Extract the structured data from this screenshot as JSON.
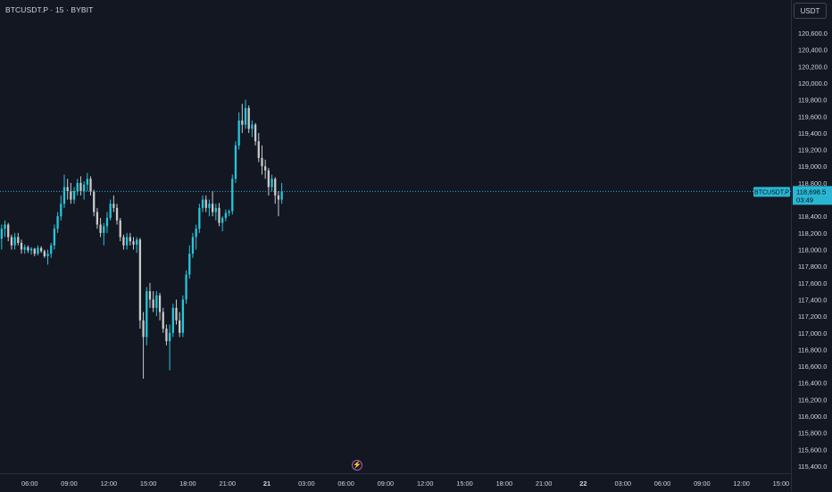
{
  "header": {
    "symbol_title": "BTCUSDT.P · 15 · BYBIT",
    "currency_button": "USDT"
  },
  "price_line": {
    "symbol_label": "BTCUSDT.P",
    "price": "118,698.5",
    "countdown": "03:49",
    "value": 118698.5
  },
  "icons": {
    "flash": "flash-icon"
  },
  "colors": {
    "background": "#131722",
    "up": "#26c6da",
    "down": "#c9c9c9",
    "price_line": "#29b6d3",
    "text": "#d1d4dc",
    "grid_border": "#2a2e39"
  },
  "chart_data": {
    "type": "candlestick",
    "symbol": "BTCUSDT.P",
    "interval": "15",
    "exchange": "BYBIT",
    "ylim": [
      115300,
      120700
    ],
    "y_ticks": [
      120600,
      120400,
      120200,
      120000,
      119800,
      119600,
      119400,
      119200,
      119000,
      118800,
      118600,
      118400,
      118200,
      118000,
      117800,
      117600,
      117400,
      117200,
      117000,
      116800,
      116600,
      116400,
      116200,
      116000,
      115800,
      115600,
      115400
    ],
    "y_tick_labels": [
      "120,600.0",
      "120,400.0",
      "120,200.0",
      "120,000.0",
      "119,800.0",
      "119,600.0",
      "119,400.0",
      "119,200.0",
      "119,000.0",
      "118,800.0",
      "118,600.0",
      "118,400.0",
      "118,200.0",
      "118,000.0",
      "117,800.0",
      "117,600.0",
      "117,400.0",
      "117,200.0",
      "117,000.0",
      "116,800.0",
      "116,600.0",
      "116,400.0",
      "116,200.0",
      "116,000.0",
      "115,800.0",
      "115,600.0",
      "115,400.0"
    ],
    "x_ticks": [
      {
        "label": "06:00",
        "hours": 0
      },
      {
        "label": "09:00",
        "hours": 3
      },
      {
        "label": "12:00",
        "hours": 6
      },
      {
        "label": "15:00",
        "hours": 9
      },
      {
        "label": "18:00",
        "hours": 12
      },
      {
        "label": "21:00",
        "hours": 15
      },
      {
        "label": "21",
        "hours": 18
      },
      {
        "label": "03:00",
        "hours": 21
      },
      {
        "label": "06:00",
        "hours": 24
      },
      {
        "label": "09:00",
        "hours": 27
      },
      {
        "label": "12:00",
        "hours": 30
      },
      {
        "label": "15:00",
        "hours": 33
      },
      {
        "label": "18:00",
        "hours": 36
      },
      {
        "label": "21:00",
        "hours": 39
      },
      {
        "label": "22",
        "hours": 42
      },
      {
        "label": "03:00",
        "hours": 45
      },
      {
        "label": "06:00",
        "hours": 48
      },
      {
        "label": "09:00",
        "hours": 51
      },
      {
        "label": "12:00",
        "hours": 54
      },
      {
        "label": "15:00",
        "hours": 57
      }
    ],
    "x_start_hours": -2.25,
    "x_end_hours": 57.75,
    "candle_start_hours": -2.25,
    "candle_interval_hours": 0.25,
    "candles": [
      [
        118130,
        118300,
        118000,
        118250
      ],
      [
        118250,
        118350,
        118150,
        118300
      ],
      [
        118300,
        118320,
        118100,
        118150
      ],
      [
        118150,
        118180,
        118000,
        118050
      ],
      [
        118050,
        118200,
        118000,
        118150
      ],
      [
        118150,
        118200,
        118050,
        118080
      ],
      [
        118080,
        118120,
        117950,
        118000
      ],
      [
        118000,
        118060,
        117950,
        118030
      ],
      [
        118030,
        118050,
        117960,
        117990
      ],
      [
        117990,
        118030,
        117940,
        118010
      ],
      [
        118010,
        118020,
        117920,
        117950
      ],
      [
        117950,
        118050,
        117930,
        118020
      ],
      [
        118020,
        118040,
        117960,
        117980
      ],
      [
        117980,
        118000,
        117900,
        117920
      ],
      [
        117920,
        118000,
        117820,
        117950
      ],
      [
        117950,
        118080,
        117900,
        118050
      ],
      [
        118050,
        118300,
        118000,
        118250
      ],
      [
        118250,
        118450,
        118200,
        118400
      ],
      [
        118400,
        118650,
        118350,
        118550
      ],
      [
        118550,
        118900,
        118500,
        118750
      ],
      [
        118750,
        118850,
        118600,
        118700
      ],
      [
        118700,
        118800,
        118550,
        118600
      ],
      [
        118600,
        118750,
        118550,
        118700
      ],
      [
        118700,
        118850,
        118650,
        118800
      ],
      [
        118800,
        118880,
        118650,
        118700
      ],
      [
        118700,
        118820,
        118600,
        118780
      ],
      [
        118780,
        118920,
        118700,
        118850
      ],
      [
        118850,
        118880,
        118650,
        118700
      ],
      [
        118700,
        118720,
        118400,
        118450
      ],
      [
        118450,
        118500,
        118250,
        118300
      ],
      [
        118300,
        118380,
        118150,
        118200
      ],
      [
        118200,
        118320,
        118050,
        118280
      ],
      [
        118280,
        118450,
        118200,
        118380
      ],
      [
        118380,
        118600,
        118350,
        118550
      ],
      [
        118550,
        118650,
        118450,
        118500
      ],
      [
        118500,
        118550,
        118300,
        118350
      ],
      [
        118350,
        118380,
        118100,
        118150
      ],
      [
        118150,
        118180,
        118000,
        118050
      ],
      [
        118050,
        118200,
        118000,
        118150
      ],
      [
        118150,
        118200,
        118050,
        118100
      ],
      [
        118100,
        118150,
        118000,
        118060
      ],
      [
        118060,
        118150,
        117960,
        118120
      ],
      [
        118120,
        118140,
        117050,
        117150
      ],
      [
        117150,
        117250,
        116450,
        116950
      ],
      [
        116950,
        117550,
        116850,
        117500
      ],
      [
        117500,
        117600,
        117300,
        117400
      ],
      [
        117400,
        117500,
        117250,
        117300
      ],
      [
        117300,
        117500,
        117200,
        117450
      ],
      [
        117450,
        117480,
        117150,
        117250
      ],
      [
        117250,
        117300,
        117000,
        117050
      ],
      [
        117050,
        117100,
        116850,
        116900
      ],
      [
        116900,
        117100,
        116550,
        117000
      ],
      [
        117000,
        117350,
        116950,
        117300
      ],
      [
        117300,
        117400,
        117100,
        117150
      ],
      [
        117150,
        117250,
        116950,
        117000
      ],
      [
        117000,
        117450,
        116950,
        117400
      ],
      [
        117400,
        117750,
        117350,
        117700
      ],
      [
        117700,
        118050,
        117650,
        117950
      ],
      [
        117950,
        118200,
        117900,
        118150
      ],
      [
        118150,
        118300,
        118000,
        118250
      ],
      [
        118250,
        118550,
        118200,
        118500
      ],
      [
        118500,
        118650,
        118450,
        118600
      ],
      [
        118600,
        118650,
        118450,
        118500
      ],
      [
        118500,
        118600,
        118400,
        118550
      ],
      [
        118550,
        118700,
        118400,
        118450
      ],
      [
        118450,
        118550,
        118350,
        118500
      ],
      [
        118500,
        118560,
        118280,
        118320
      ],
      [
        118320,
        118400,
        118220,
        118380
      ],
      [
        118380,
        118480,
        118340,
        118440
      ],
      [
        118440,
        118480,
        118400,
        118460
      ],
      [
        118460,
        118900,
        118420,
        118850
      ],
      [
        118850,
        119300,
        118800,
        119250
      ],
      [
        119250,
        119650,
        119200,
        119550
      ],
      [
        119550,
        119750,
        119400,
        119500
      ],
      [
        119500,
        119800,
        119450,
        119700
      ],
      [
        119700,
        119730,
        119400,
        119450
      ],
      [
        119450,
        119550,
        119350,
        119500
      ],
      [
        119500,
        119520,
        119250,
        119300
      ],
      [
        119300,
        119400,
        119050,
        119100
      ],
      [
        119100,
        119250,
        118900,
        119000
      ],
      [
        119000,
        119080,
        118850,
        118950
      ],
      [
        118950,
        118980,
        118650,
        118750
      ],
      [
        118750,
        118900,
        118700,
        118850
      ],
      [
        118850,
        118870,
        118550,
        118650
      ],
      [
        118650,
        118700,
        118400,
        118600
      ],
      [
        118600,
        118800,
        118550,
        118700
      ]
    ]
  }
}
